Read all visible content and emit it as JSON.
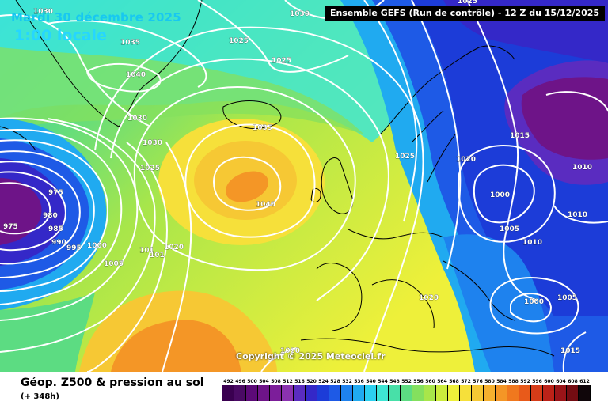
{
  "header": {
    "date_title": "Mardi 30 décembre 2025",
    "time_title": "1:00 locale",
    "run_info": "Ensemble GEFS  (Run de contrôle)  -  12 Z du 15/12/2025"
  },
  "map": {
    "isobar_labels": [
      {
        "id": "1030-nw",
        "text": "1030"
      },
      {
        "id": "1030-n",
        "text": "1030"
      },
      {
        "id": "1025-tr",
        "text": "1025"
      },
      {
        "id": "1035-grl",
        "text": "1035"
      },
      {
        "id": "1025-n",
        "text": "1025"
      },
      {
        "id": "1025-n2",
        "text": "1025"
      },
      {
        "id": "1040-w",
        "text": "1040"
      },
      {
        "id": "1030-grl",
        "text": "1030"
      },
      {
        "id": "1035-ice",
        "text": "1035"
      },
      {
        "id": "1030-sw",
        "text": "1030"
      },
      {
        "id": "1025-sw",
        "text": "1025"
      },
      {
        "id": "1040-c",
        "text": "1040"
      },
      {
        "id": "1025-nor",
        "text": "1025"
      },
      {
        "id": "1020-swe",
        "text": "1020"
      },
      {
        "id": "1015-ru",
        "text": "1015"
      },
      {
        "id": "1010-ru",
        "text": "1010"
      },
      {
        "id": "1000-ru",
        "text": "1000"
      },
      {
        "id": "1005-ru",
        "text": "1005"
      },
      {
        "id": "1010-ru2",
        "text": "1010"
      },
      {
        "id": "1010-ru3",
        "text": "1010"
      },
      {
        "id": "975-a",
        "text": "975"
      },
      {
        "id": "980",
        "text": "980"
      },
      {
        "id": "985",
        "text": "985"
      },
      {
        "id": "990",
        "text": "990"
      },
      {
        "id": "995",
        "text": "995"
      },
      {
        "id": "975-b",
        "text": "975"
      },
      {
        "id": "1000-atl",
        "text": "1000"
      },
      {
        "id": "1005-atl",
        "text": "1005"
      },
      {
        "id": "1015-atl",
        "text": "101"
      },
      {
        "id": "1015-atl2",
        "text": "101"
      },
      {
        "id": "1020-atl",
        "text": "1020"
      },
      {
        "id": "1020-eur",
        "text": "1020"
      },
      {
        "id": "1000-med",
        "text": "1000"
      },
      {
        "id": "1005-med",
        "text": "1005"
      },
      {
        "id": "1015-se",
        "text": "1015"
      },
      {
        "id": "1020-s",
        "text": "1020"
      }
    ],
    "copyright": "Copyright © 2025 Meteociel.fr",
    "colors": {
      "isobar": "#ffffff",
      "coastline": "#000000",
      "low_purple": "#5a0a78",
      "deep_blue": "#1c3cd8",
      "cyan": "#2cd8f0",
      "green": "#6ed86a",
      "yellow": "#f5f03c",
      "orange": "#f5a01e",
      "title_cyan": "#26d6ff"
    }
  },
  "legend": {
    "title": "Géop. Z500 & pression au sol",
    "lead": "(+ 348h)",
    "scale": [
      {
        "label": "492",
        "color": "#3a0050"
      },
      {
        "label": "496",
        "color": "#4a0a64"
      },
      {
        "label": "500",
        "color": "#5c0a78"
      },
      {
        "label": "504",
        "color": "#6e1488"
      },
      {
        "label": "508",
        "color": "#7c1e9a"
      },
      {
        "label": "512",
        "color": "#8a32b0"
      },
      {
        "label": "516",
        "color": "#5a2cc0"
      },
      {
        "label": "520",
        "color": "#3428c8"
      },
      {
        "label": "524",
        "color": "#1c3cd8"
      },
      {
        "label": "528",
        "color": "#1e5ae6"
      },
      {
        "label": "532",
        "color": "#1e82ee"
      },
      {
        "label": "536",
        "color": "#20aaf0"
      },
      {
        "label": "540",
        "color": "#2cd0f0"
      },
      {
        "label": "544",
        "color": "#3ee6d4"
      },
      {
        "label": "548",
        "color": "#48e0a8"
      },
      {
        "label": "552",
        "color": "#5cdc82"
      },
      {
        "label": "556",
        "color": "#84e05e"
      },
      {
        "label": "560",
        "color": "#a8e64a"
      },
      {
        "label": "564",
        "color": "#ccec3c"
      },
      {
        "label": "568",
        "color": "#eef03a"
      },
      {
        "label": "572",
        "color": "#f6e03a"
      },
      {
        "label": "576",
        "color": "#f6c834"
      },
      {
        "label": "580",
        "color": "#f6b02e"
      },
      {
        "label": "584",
        "color": "#f49626"
      },
      {
        "label": "588",
        "color": "#f0781e"
      },
      {
        "label": "592",
        "color": "#e85a1a"
      },
      {
        "label": "596",
        "color": "#d63c18"
      },
      {
        "label": "600",
        "color": "#bc2218"
      },
      {
        "label": "604",
        "color": "#9a1418"
      },
      {
        "label": "608",
        "color": "#740c12"
      },
      {
        "label": "612",
        "color": "#10060a"
      }
    ]
  }
}
